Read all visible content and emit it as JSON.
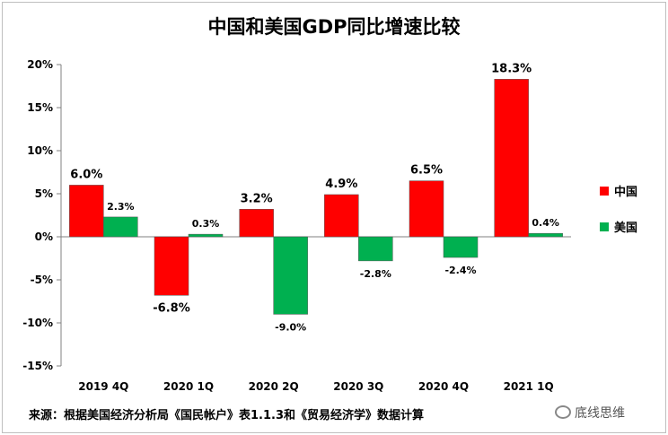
{
  "chart_data": {
    "type": "bar",
    "title": "中国和美国GDP同比增速比较",
    "categories": [
      "2019 4Q",
      "2020 1Q",
      "2020 2Q",
      "2020 3Q",
      "2020 4Q",
      "2021 1Q"
    ],
    "series": [
      {
        "name": "中国",
        "values": [
          6.0,
          -6.8,
          3.2,
          4.9,
          6.5,
          18.3
        ],
        "labels": [
          "6.0%",
          "-6.8%",
          "3.2%",
          "4.9%",
          "6.5%",
          "18.3%"
        ],
        "color": "#ff0000"
      },
      {
        "name": "美国",
        "values": [
          2.3,
          0.3,
          -9.0,
          -2.8,
          -2.4,
          0.4
        ],
        "labels": [
          "2.3%",
          "0.3%",
          "-9.0%",
          "-2.8%",
          "-2.4%",
          "0.4%"
        ],
        "color": "#00b050"
      }
    ],
    "y_ticks": [
      20,
      15,
      10,
      5,
      0,
      -5,
      -10,
      -15
    ],
    "y_tick_labels": [
      "20%",
      "15%",
      "10%",
      "5%",
      "0%",
      "-5%",
      "-10%",
      "-15%"
    ],
    "ylim": [
      -15,
      20
    ],
    "xlabel": "",
    "ylabel": "",
    "grid": false,
    "legend": "right"
  },
  "source_note": "来源：根据美国经济分析局《国民帐户》表1.1.3和《贸易经济学》数据计算",
  "watermark": "底线思维"
}
